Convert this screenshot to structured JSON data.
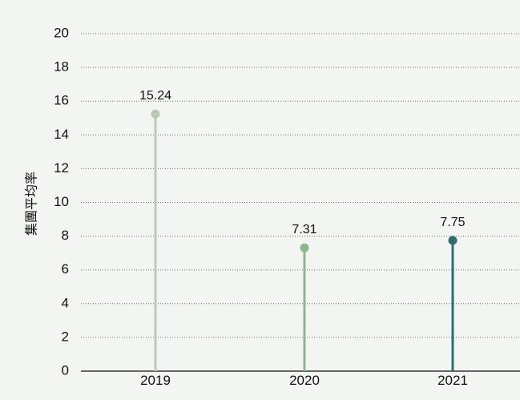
{
  "chart_data": {
    "type": "lollipop",
    "title": "",
    "xlabel": "",
    "ylabel": "集團平均率",
    "categories": [
      "2019",
      "2020",
      "2021"
    ],
    "values": [
      15.24,
      7.31,
      7.75
    ],
    "value_labels": [
      "15.24",
      "7.31",
      "7.75"
    ],
    "colors": [
      "#b9c9b3",
      "#8fb68f",
      "#2e6e6c"
    ],
    "ylim": [
      0,
      20
    ],
    "yticks": [
      0,
      2,
      4,
      6,
      8,
      10,
      12,
      14,
      16,
      18,
      20
    ],
    "grid": true,
    "grid_style": "dotted",
    "legend": "none",
    "background": "#f2f5f2"
  }
}
